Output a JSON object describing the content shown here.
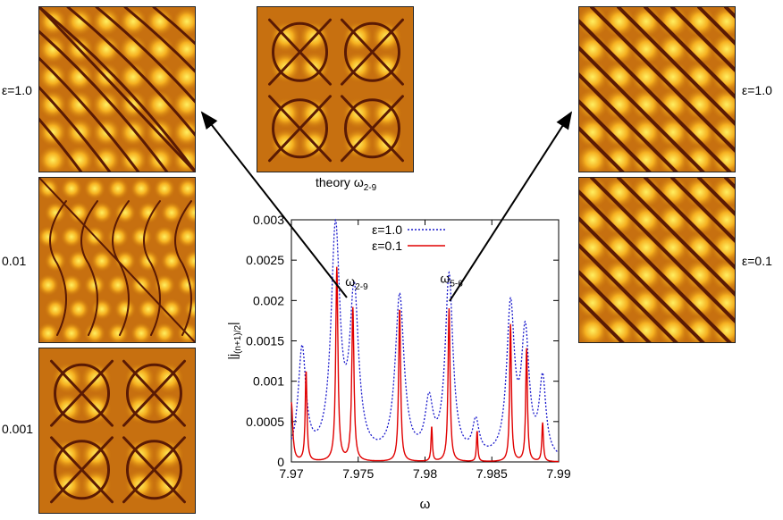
{
  "panel_labels": {
    "left_top": "ε=1.0",
    "left_mid": "0.01",
    "left_bot": "0.001",
    "right_top": "ε=1.0",
    "right_bot": "ε=0.1",
    "center_theory": "theory",
    "center_theory_sub": "ω",
    "center_theory_index": "2-9"
  },
  "chart_data": {
    "type": "line",
    "xlabel": "ω",
    "ylabel": "|j(n+1)/2|",
    "ylabel_base": "|j",
    "ylabel_sub": "(n+1)/2",
    "ylabel_end": "|",
    "xlim": [
      7.97,
      7.99
    ],
    "ylim": [
      0,
      0.003
    ],
    "x_ticks": [
      "7.97",
      "7.975",
      "7.98",
      "7.985",
      "7.99"
    ],
    "y_ticks": [
      "0",
      "0.0005",
      "0.001",
      "0.0015",
      "0.002",
      "0.0025",
      "0.003"
    ],
    "annotations": [
      {
        "text": "ω",
        "sub": "2-9",
        "x": 7.9747,
        "y": 0.00198
      },
      {
        "text": "ω",
        "sub": "5-6",
        "x": 7.9818,
        "y": 0.00202
      }
    ],
    "series": [
      {
        "name": "ε=1.0",
        "color": "#1a1acc",
        "style": "dotted",
        "background": 0.0,
        "peaks": [
          {
            "x": 7.9708,
            "h": 0.00135,
            "w": 0.00035
          },
          {
            "x": 7.9733,
            "h": 0.0028,
            "w": 0.0004
          },
          {
            "x": 7.9747,
            "h": 0.00198,
            "w": 0.0004
          },
          {
            "x": 7.9781,
            "h": 0.002,
            "w": 0.0004
          },
          {
            "x": 7.9803,
            "h": 0.00065,
            "w": 0.00035
          },
          {
            "x": 7.9818,
            "h": 0.00225,
            "w": 0.00035
          },
          {
            "x": 7.9838,
            "h": 0.00042,
            "w": 0.0003
          },
          {
            "x": 7.9864,
            "h": 0.00185,
            "w": 0.00035
          },
          {
            "x": 7.9875,
            "h": 0.0015,
            "w": 0.00035
          },
          {
            "x": 7.9888,
            "h": 0.00095,
            "w": 0.0003
          }
        ]
      },
      {
        "name": "ε=0.1",
        "color": "#e00000",
        "style": "solid",
        "background": 0.0,
        "peaks": [
          {
            "x": 7.97,
            "h": 0.00073,
            "w": 0.00012
          },
          {
            "x": 7.9711,
            "h": 0.00112,
            "w": 8e-05
          },
          {
            "x": 7.9734,
            "h": 0.0024,
            "w": 0.0001
          },
          {
            "x": 7.9746,
            "h": 0.0019,
            "w": 0.0001
          },
          {
            "x": 7.9781,
            "h": 0.0019,
            "w": 9e-05
          },
          {
            "x": 7.9805,
            "h": 0.00043,
            "w": 6e-05
          },
          {
            "x": 7.9818,
            "h": 0.0019,
            "w": 9e-05
          },
          {
            "x": 7.9839,
            "h": 0.00038,
            "w": 6e-05
          },
          {
            "x": 7.9864,
            "h": 0.0017,
            "w": 8e-05
          },
          {
            "x": 7.9876,
            "h": 0.0014,
            "w": 8e-05
          },
          {
            "x": 7.9888,
            "h": 0.00048,
            "w": 7e-05
          }
        ]
      }
    ]
  }
}
